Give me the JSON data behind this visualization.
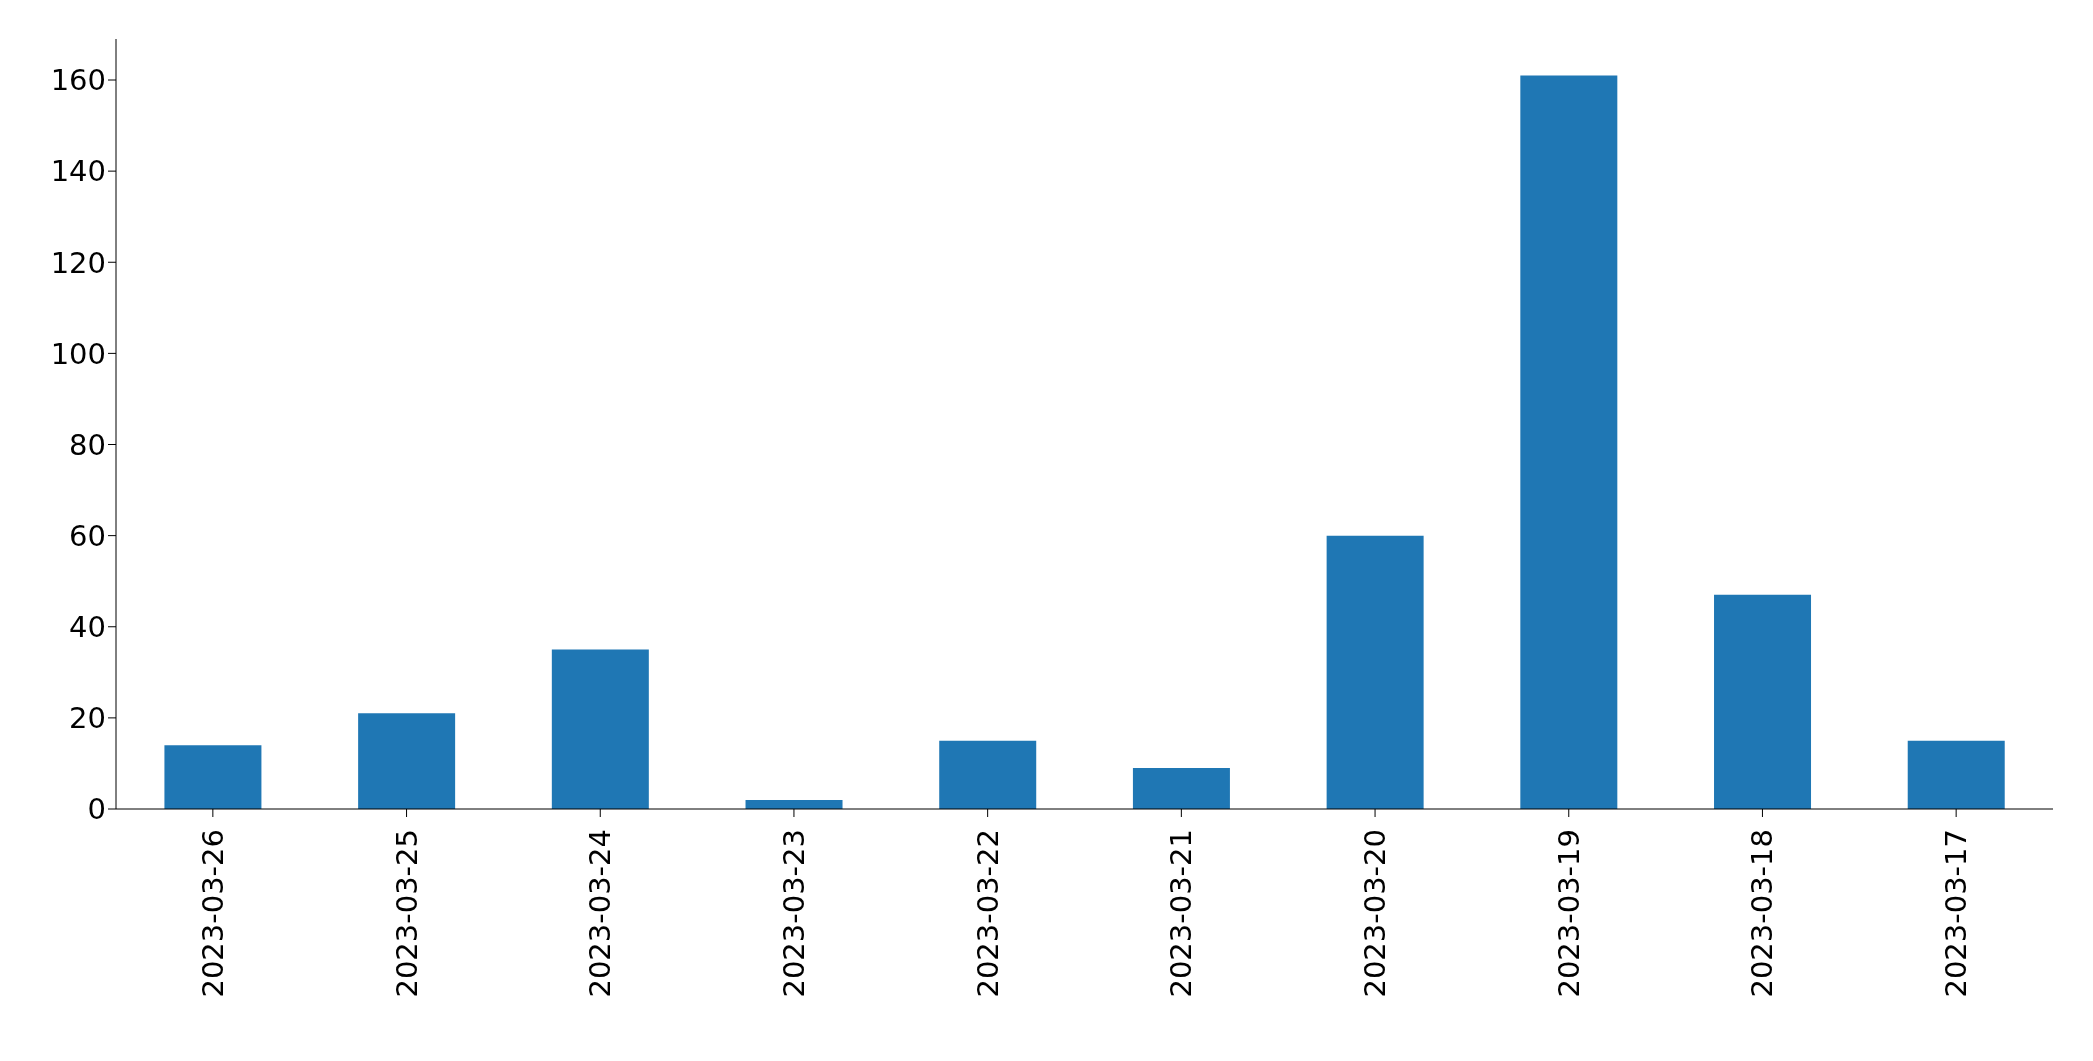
{
  "chart_data": {
    "type": "bar",
    "categories": [
      "2023-03-26",
      "2023-03-25",
      "2023-03-24",
      "2023-03-23",
      "2023-03-22",
      "2023-03-21",
      "2023-03-20",
      "2023-03-19",
      "2023-03-18",
      "2023-03-17"
    ],
    "values": [
      14,
      21,
      35,
      2,
      15,
      9,
      60,
      161,
      47,
      15
    ],
    "color": "#1f77b4",
    "ylim": [
      0,
      169
    ],
    "yticks": [
      0,
      20,
      40,
      60,
      80,
      100,
      120,
      140,
      160
    ],
    "grid": false,
    "legend": false
  }
}
